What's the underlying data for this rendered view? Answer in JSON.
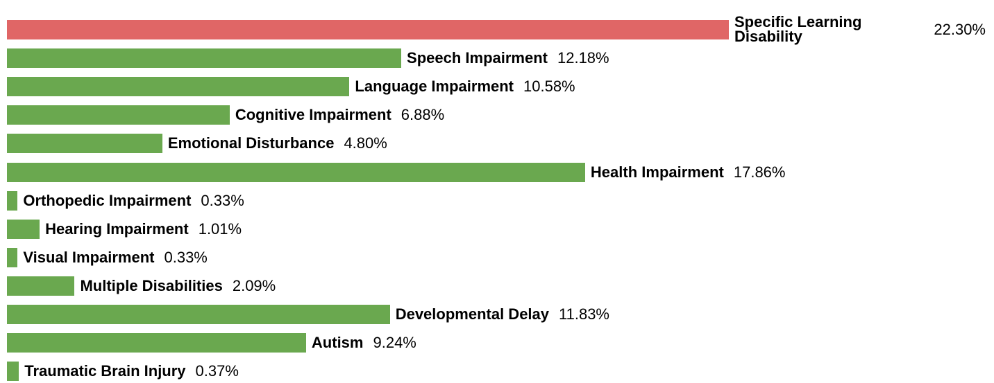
{
  "chart_data": {
    "type": "bar",
    "orientation": "horizontal",
    "categories": [
      "Specific Learning Disability",
      "Speech Impairment",
      "Language Impairment",
      "Cognitive Impairment",
      "Emotional Disturbance",
      "Health Impairment",
      "Orthopedic Impairment",
      "Hearing Impairment",
      "Visual Impairment",
      "Multiple Disabilities",
      "Developmental Delay",
      "Autism",
      "Traumatic Brain Injury"
    ],
    "values": [
      22.3,
      12.18,
      10.58,
      6.88,
      4.8,
      17.86,
      0.33,
      1.01,
      0.33,
      2.09,
      11.83,
      9.24,
      0.37
    ],
    "value_labels": [
      "22.30%",
      "12.18%",
      "10.58%",
      "6.88%",
      "4.80%",
      "17.86%",
      "0.33%",
      "1.01%",
      "0.33%",
      "2.09%",
      "11.83%",
      "9.24%",
      "0.37%"
    ],
    "colors": [
      "#e06666",
      "#6aa84f",
      "#6aa84f",
      "#6aa84f",
      "#6aa84f",
      "#6aa84f",
      "#6aa84f",
      "#6aa84f",
      "#6aa84f",
      "#6aa84f",
      "#6aa84f",
      "#6aa84f",
      "#6aa84f"
    ]
  }
}
